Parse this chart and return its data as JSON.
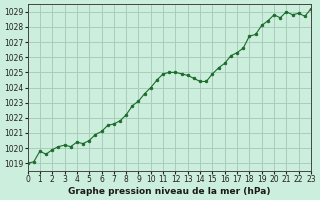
{
  "title": "Graphe pression niveau de la mer (hPa)",
  "bg_color": "#cceedd",
  "grid_color": "#aaccbb",
  "line_color": "#1a6b2a",
  "marker_color": "#1a6b2a",
  "xlim": [
    0,
    23
  ],
  "ylim": [
    1018.5,
    1029.5
  ],
  "yticks": [
    1019,
    1020,
    1021,
    1022,
    1023,
    1024,
    1025,
    1026,
    1027,
    1028,
    1029
  ],
  "xticks": [
    0,
    1,
    2,
    3,
    4,
    5,
    6,
    7,
    8,
    9,
    10,
    11,
    12,
    13,
    14,
    15,
    16,
    17,
    18,
    19,
    20,
    21,
    22,
    23
  ],
  "x": [
    0,
    0.5,
    1,
    1.5,
    2,
    2.5,
    3,
    3.5,
    4,
    4.5,
    5,
    5.5,
    6,
    6.5,
    7,
    7.5,
    8,
    8.5,
    9,
    9.5,
    10,
    10.5,
    11,
    11.5,
    12,
    12.5,
    13,
    13.5,
    14,
    14.5,
    15,
    15.5,
    16,
    16.5,
    17,
    17.5,
    18,
    18.5,
    19,
    19.5,
    20,
    20.5,
    21,
    21.5,
    22,
    22.5,
    23
  ],
  "y": [
    1019.0,
    1019.1,
    1019.8,
    1019.6,
    1019.9,
    1020.1,
    1020.2,
    1020.1,
    1020.4,
    1020.3,
    1020.5,
    1020.9,
    1021.1,
    1021.5,
    1021.6,
    1021.8,
    1022.2,
    1022.8,
    1023.1,
    1023.6,
    1024.0,
    1024.5,
    1024.9,
    1025.0,
    1025.0,
    1024.9,
    1024.8,
    1024.6,
    1024.4,
    1024.4,
    1024.9,
    1025.3,
    1025.6,
    1026.1,
    1026.3,
    1026.6,
    1027.4,
    1027.5,
    1028.1,
    1028.4,
    1028.8,
    1028.6,
    1029.0,
    1028.8,
    1028.9,
    1028.7,
    1029.2
  ]
}
